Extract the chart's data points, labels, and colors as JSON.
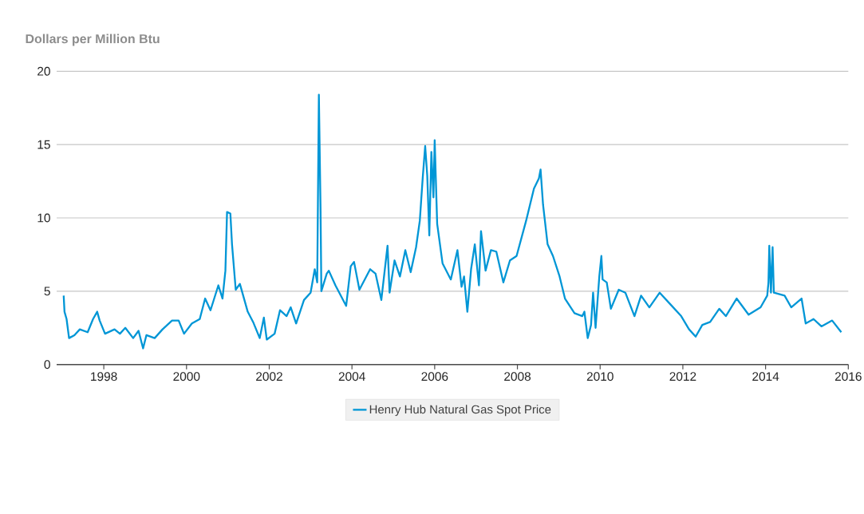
{
  "chart_data": {
    "type": "line",
    "ylabel": "Dollars per Million Btu",
    "x": [
      1997.03,
      1997.05,
      1997.1,
      1997.16,
      1997.29,
      1997.42,
      1997.61,
      1997.74,
      1997.84,
      1997.9,
      1998.03,
      1998.26,
      1998.39,
      1998.52,
      1998.71,
      1998.84,
      1998.95,
      1999.03,
      1999.23,
      1999.42,
      1999.65,
      1999.81,
      1999.94,
      2000.13,
      2000.32,
      2000.45,
      2000.58,
      2000.77,
      2000.87,
      2000.94,
      2000.98,
      2001.06,
      2001.1,
      2001.19,
      2001.29,
      2001.48,
      2001.61,
      2001.77,
      2001.87,
      2001.94,
      2002.13,
      2002.26,
      2002.42,
      2002.52,
      2002.65,
      2002.84,
      2003.0,
      2003.1,
      2003.16,
      2003.2,
      2003.24,
      2003.26,
      2003.39,
      2003.44,
      2003.6,
      2003.86,
      2003.97,
      2004.05,
      2004.18,
      2004.44,
      2004.57,
      2004.71,
      2004.86,
      2004.91,
      2005.03,
      2005.16,
      2005.29,
      2005.42,
      2005.55,
      2005.64,
      2005.71,
      2005.77,
      2005.82,
      2005.87,
      2005.92,
      2005.97,
      2006.0,
      2006.06,
      2006.19,
      2006.39,
      2006.55,
      2006.65,
      2006.71,
      2006.79,
      2006.88,
      2006.97,
      2007.07,
      2007.12,
      2007.23,
      2007.36,
      2007.49,
      2007.66,
      2007.82,
      2007.98,
      2008.21,
      2008.4,
      2008.52,
      2008.56,
      2008.62,
      2008.73,
      2008.86,
      2009.02,
      2009.15,
      2009.38,
      2009.57,
      2009.62,
      2009.7,
      2009.78,
      2009.83,
      2009.89,
      2009.98,
      2010.03,
      2010.06,
      2010.16,
      2010.26,
      2010.45,
      2010.61,
      2010.83,
      2010.99,
      2011.19,
      2011.44,
      2011.7,
      2011.96,
      2012.15,
      2012.31,
      2012.47,
      2012.66,
      2012.88,
      2013.04,
      2013.3,
      2013.59,
      2013.88,
      2014.04,
      2014.07,
      2014.09,
      2014.13,
      2014.17,
      2014.2,
      2014.46,
      2014.62,
      2014.87,
      2014.97,
      2015.16,
      2015.35,
      2015.61,
      2015.83
    ],
    "series": [
      {
        "name": "Henry Hub Natural Gas Spot Price",
        "color": "#0096d6",
        "values": [
          4.7,
          3.6,
          3.1,
          1.8,
          2.0,
          2.4,
          2.2,
          3.1,
          3.6,
          3.0,
          2.1,
          2.4,
          2.1,
          2.5,
          1.8,
          2.3,
          1.1,
          2.0,
          1.8,
          2.4,
          3.0,
          3.0,
          2.1,
          2.8,
          3.1,
          4.5,
          3.7,
          5.4,
          4.5,
          6.4,
          10.4,
          10.3,
          8.2,
          5.1,
          5.5,
          3.6,
          2.9,
          1.8,
          3.2,
          1.7,
          2.1,
          3.7,
          3.3,
          3.9,
          2.8,
          4.4,
          4.9,
          6.5,
          5.6,
          18.4,
          10.7,
          5.0,
          6.2,
          6.4,
          5.4,
          4.0,
          6.7,
          7.0,
          5.1,
          6.5,
          6.2,
          4.4,
          8.1,
          4.9,
          7.1,
          6.0,
          7.8,
          6.3,
          8.0,
          9.8,
          12.7,
          14.9,
          12.9,
          8.8,
          14.5,
          11.4,
          15.3,
          9.6,
          6.9,
          5.8,
          7.8,
          5.3,
          6.0,
          3.6,
          6.5,
          8.2,
          5.4,
          9.1,
          6.4,
          7.8,
          7.7,
          5.6,
          7.1,
          7.4,
          9.8,
          12.0,
          12.7,
          13.3,
          10.9,
          8.2,
          7.4,
          6.0,
          4.5,
          3.5,
          3.3,
          3.6,
          1.8,
          2.7,
          4.9,
          2.5,
          6.0,
          7.4,
          5.8,
          5.6,
          3.8,
          5.1,
          4.9,
          3.3,
          4.7,
          3.9,
          4.9,
          4.1,
          3.3,
          2.4,
          1.9,
          2.7,
          2.9,
          3.8,
          3.3,
          4.5,
          3.4,
          3.9,
          4.7,
          5.6,
          8.1,
          4.9,
          8.0,
          4.9,
          4.7,
          3.9,
          4.5,
          2.8,
          3.1,
          2.6,
          3.0,
          2.2
        ]
      }
    ],
    "xlim": [
      1996.86,
      2016
    ],
    "xticks": [
      1998,
      2000,
      2002,
      2004,
      2006,
      2008,
      2010,
      2012,
      2014,
      2016
    ],
    "ylim": [
      0,
      20
    ],
    "yticks": [
      0,
      5,
      10,
      15,
      20
    ],
    "grid": "y",
    "legend": "bottom",
    "marker": "none",
    "line_style": "solid"
  }
}
